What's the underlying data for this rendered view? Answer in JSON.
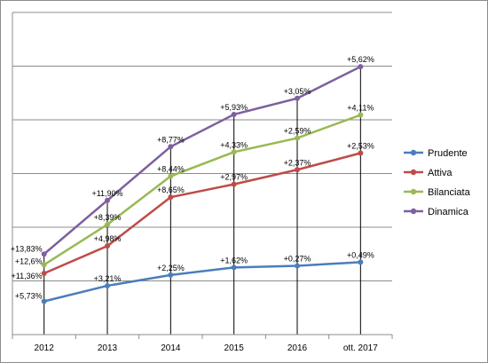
{
  "chart_data": {
    "type": "line",
    "categories": [
      "2012",
      "2013",
      "2014",
      "2015",
      "2016",
      "ott. 2017"
    ],
    "ylim": [
      0,
      6
    ],
    "grid": true,
    "legend": "right",
    "series": [
      {
        "name": "Prudente",
        "color": "#4a7ebb",
        "values": [
          0.62,
          0.91,
          1.11,
          1.25,
          1.28,
          1.35
        ],
        "labels": [
          "+5,73%",
          "+3,21%",
          "+2,25%",
          "+1,62%",
          "+0,27%",
          "+0,49%"
        ]
      },
      {
        "name": "Attiva",
        "color": "#be4b48",
        "values": [
          1.14,
          1.65,
          2.56,
          2.8,
          3.07,
          3.38
        ],
        "labels": [
          "+11,36%",
          "+4,98%",
          "+8,65%",
          "+2,97%",
          "+2,37%",
          "+2,53%"
        ]
      },
      {
        "name": "Bilanciata",
        "color": "#98b954",
        "values": [
          1.3,
          2.05,
          2.95,
          3.4,
          3.66,
          4.09
        ],
        "labels": [
          "+12,6%",
          "+8,39%",
          "+8,44%",
          "+4,33%",
          "+2,59%",
          "+4,11%"
        ]
      },
      {
        "name": "Dinamica",
        "color": "#7d60a0",
        "values": [
          1.5,
          2.5,
          3.5,
          4.1,
          4.4,
          4.99
        ],
        "labels": [
          "+13,83%",
          "+11,90%",
          "+8,77%",
          "+5,93%",
          "+3,05%",
          "+5,62%"
        ]
      }
    ]
  }
}
